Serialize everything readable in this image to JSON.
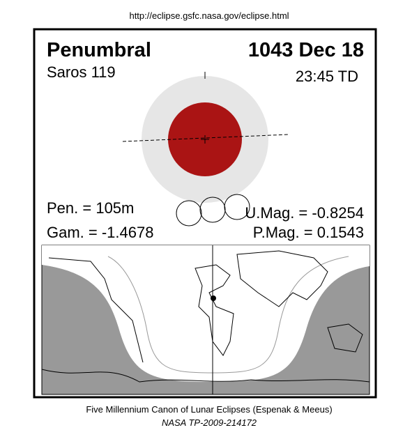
{
  "header": {
    "url": "http://eclipse.gsfc.nasa.gov/eclipse.html"
  },
  "panel": {
    "eclipse_type": "Penumbral",
    "date": "1043 Dec 18",
    "saros": "Saros 119",
    "time": "23:45 TD",
    "pen": "Pen. = 105m",
    "gam": "Gam. = -1.4678",
    "umag": "U.Mag. = -0.8254",
    "pmag": "P.Mag. = 0.1543"
  },
  "footer": {
    "line1": "Five Millennium Canon of Lunar Eclipses (Espenak & Meeus)",
    "line2": "NASA TP-2009-214172"
  }
}
